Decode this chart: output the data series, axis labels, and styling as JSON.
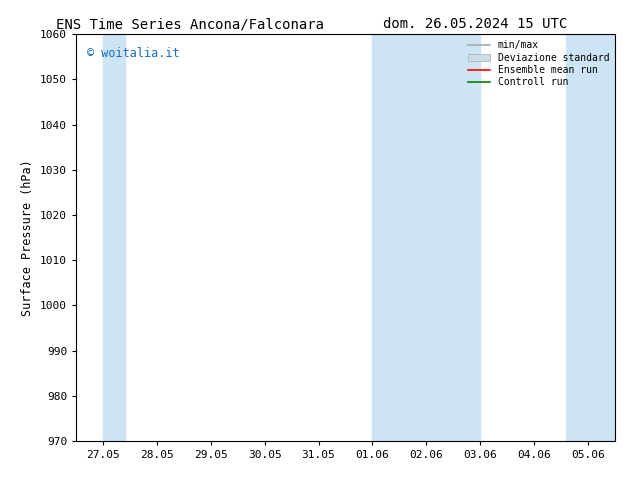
{
  "title_left": "ENS Time Series Ancona/Falconara",
  "title_right": "dom. 26.05.2024 15 UTC",
  "ylabel": "Surface Pressure (hPa)",
  "ylim": [
    970,
    1060
  ],
  "yticks": [
    970,
    980,
    990,
    1000,
    1010,
    1020,
    1030,
    1040,
    1050,
    1060
  ],
  "xtick_labels": [
    "27.05",
    "28.05",
    "29.05",
    "30.05",
    "31.05",
    "01.06",
    "02.06",
    "03.06",
    "04.06",
    "05.06"
  ],
  "background_color": "#ffffff",
  "shaded_bands_color": "#cde4f5",
  "watermark_text": "© woitalia.it",
  "watermark_color": "#1a6dc0",
  "legend_entries": [
    {
      "label": "min/max",
      "color": "#aaaaaa",
      "lw": 1.2,
      "style": "solid"
    },
    {
      "label": "Deviazione standard",
      "color": "#ccdde8",
      "lw": 6,
      "style": "solid"
    },
    {
      "label": "Ensemble mean run",
      "color": "#ff0000",
      "lw": 1.2,
      "style": "solid"
    },
    {
      "label": "Controll run",
      "color": "#008000",
      "lw": 1.2,
      "style": "solid"
    }
  ],
  "shaded_bands": [
    {
      "xmin": 0,
      "xmax": 0.4
    },
    {
      "xmin": 5.0,
      "xmax": 7.0
    },
    {
      "xmin": 8.6,
      "xmax": 9.6
    }
  ],
  "num_xticks": 10,
  "title_fontsize": 10,
  "axis_fontsize": 8.5,
  "tick_fontsize": 8,
  "font_family": "monospace"
}
